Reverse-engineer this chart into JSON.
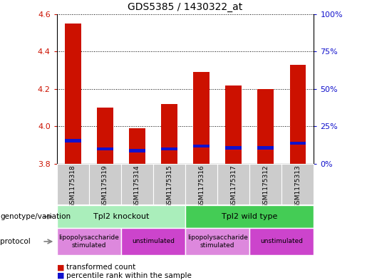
{
  "title": "GDS5385 / 1430322_at",
  "samples": [
    "GSM1175318",
    "GSM1175319",
    "GSM1175314",
    "GSM1175315",
    "GSM1175316",
    "GSM1175317",
    "GSM1175312",
    "GSM1175313"
  ],
  "red_values": [
    4.55,
    4.1,
    3.99,
    4.12,
    4.29,
    4.22,
    4.2,
    4.33
  ],
  "blue_values": [
    3.915,
    3.873,
    3.862,
    3.873,
    3.887,
    3.877,
    3.877,
    3.903
  ],
  "blue_heights": [
    0.016,
    0.016,
    0.016,
    0.016,
    0.016,
    0.016,
    0.016,
    0.016
  ],
  "y_min": 3.8,
  "y_max": 4.6,
  "y_ticks": [
    3.8,
    4.0,
    4.2,
    4.4,
    4.6
  ],
  "y2_ticks": [
    0,
    25,
    50,
    75,
    100
  ],
  "bar_color_red": "#CC1100",
  "bar_color_blue": "#1111CC",
  "bar_bottom": 3.8,
  "bar_width": 0.5,
  "genotype_groups": [
    {
      "label": "Tpl2 knockout",
      "start": 0,
      "end": 4,
      "color": "#AAEEBB"
    },
    {
      "label": "Tpl2 wild type",
      "start": 4,
      "end": 8,
      "color": "#44CC55"
    }
  ],
  "protocol_groups": [
    {
      "label": "lipopolysaccharide\nstimulated",
      "start": 0,
      "end": 2,
      "color": "#DD88DD"
    },
    {
      "label": "unstimulated",
      "start": 2,
      "end": 4,
      "color": "#CC44CC"
    },
    {
      "label": "lipopolysaccharide\nstimulated",
      "start": 4,
      "end": 6,
      "color": "#DD88DD"
    },
    {
      "label": "unstimulated",
      "start": 6,
      "end": 8,
      "color": "#CC44CC"
    }
  ],
  "legend_red_label": "transformed count",
  "legend_blue_label": "percentile rank within the sample",
  "left_label_genotype": "genotype/variation",
  "left_label_protocol": "protocol",
  "sample_bg_color": "#CCCCCC",
  "plot_bg_color": "#FFFFFF",
  "fig_bg_color": "#FFFFFF"
}
